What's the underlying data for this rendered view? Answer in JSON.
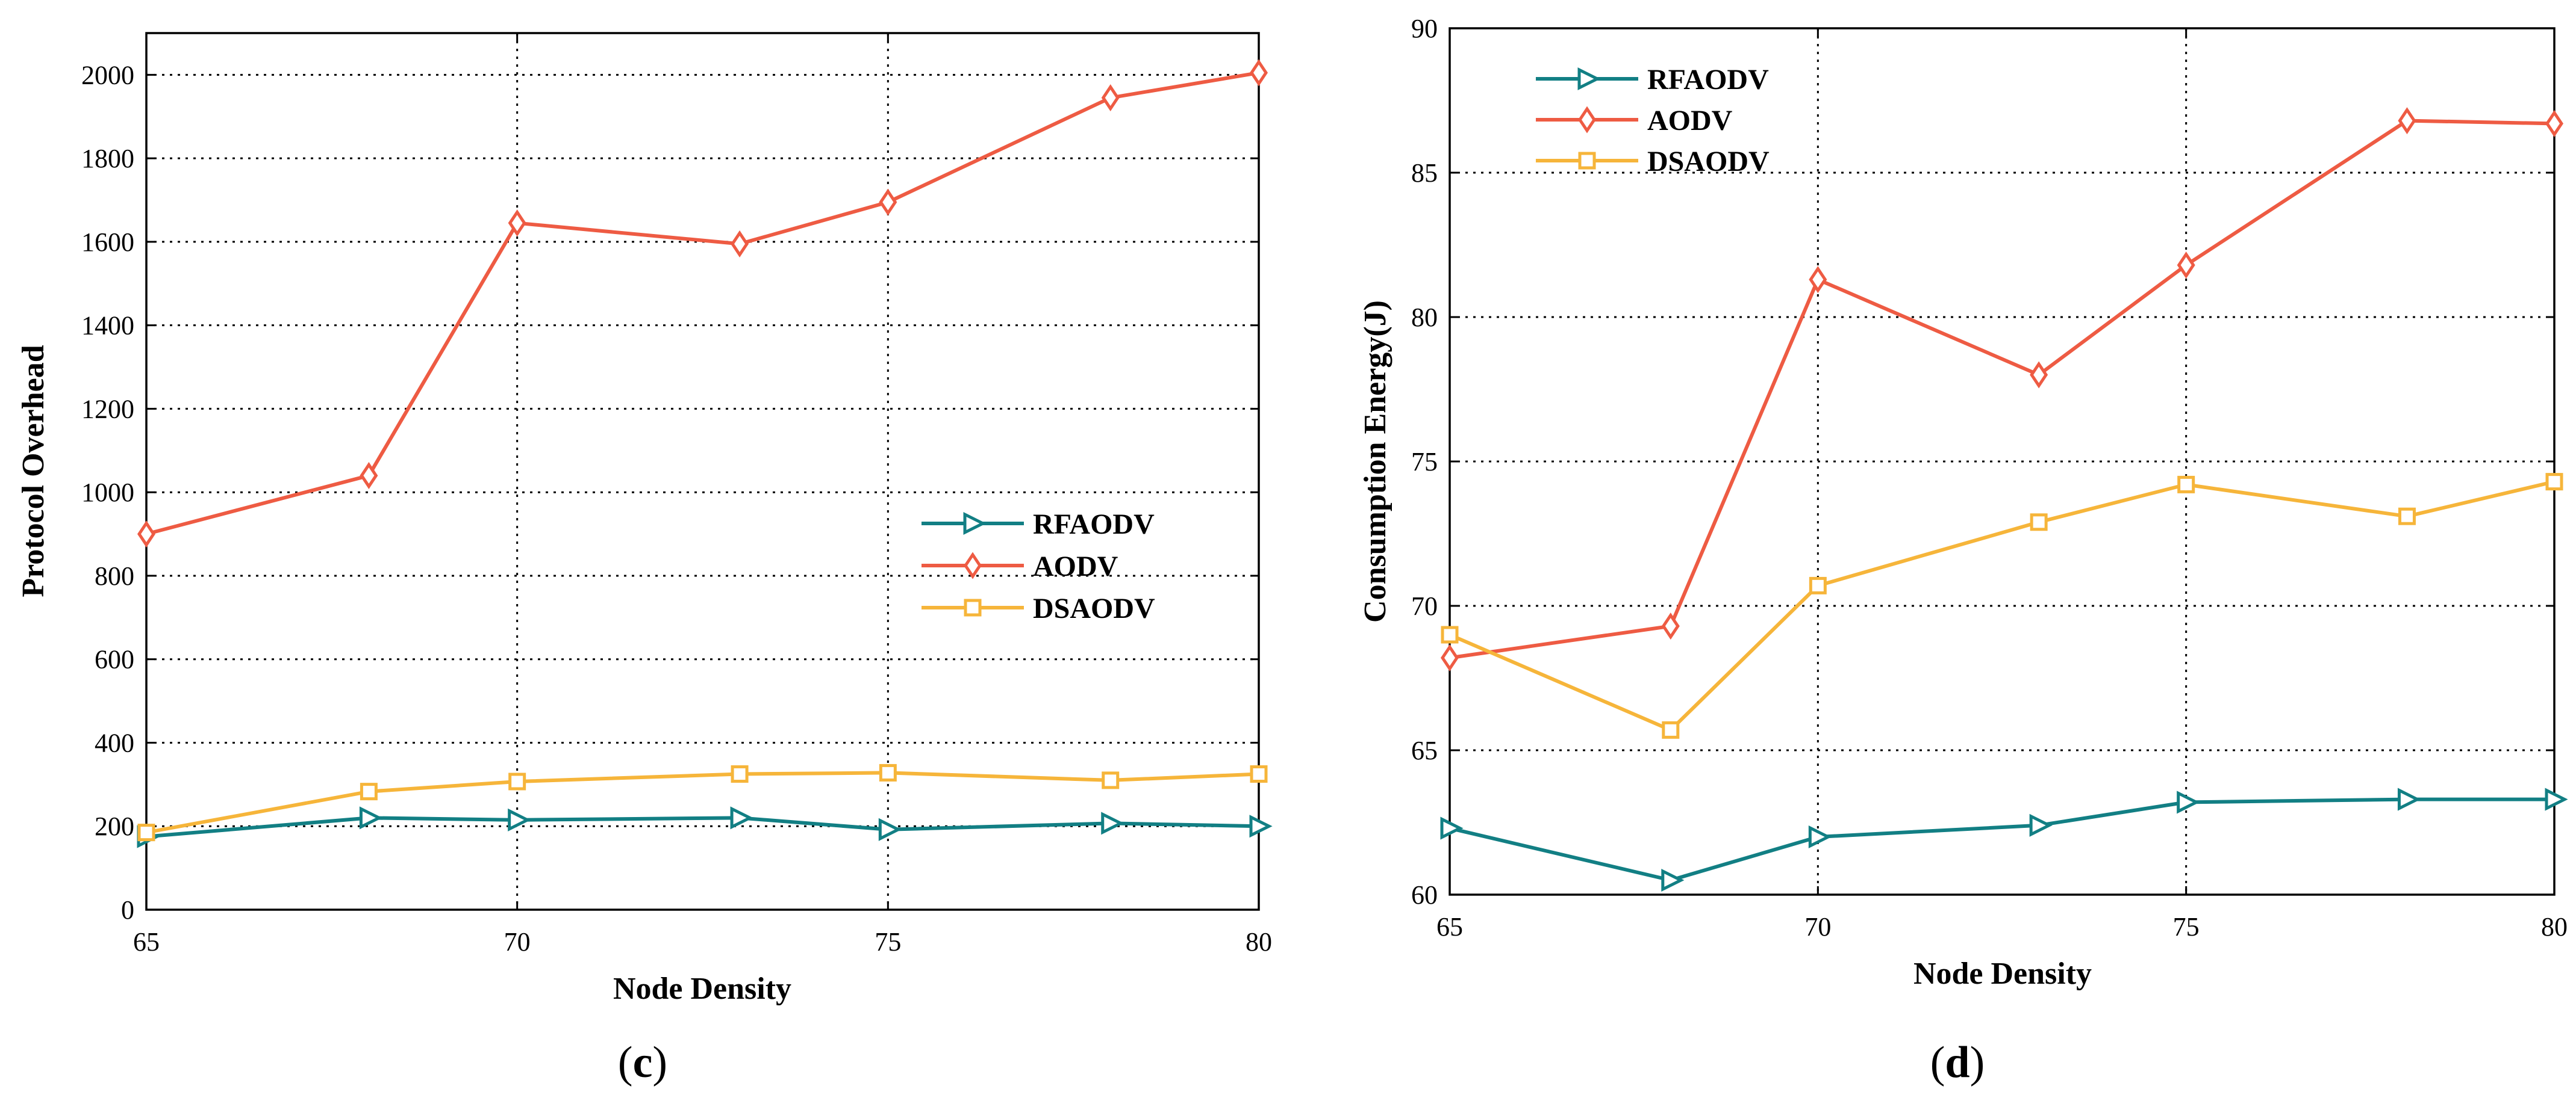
{
  "colors": {
    "RFAODV": "#127f84",
    "AODV": "#ee5b43",
    "DSAODV": "#f6b53a"
  },
  "chart_data": [
    {
      "type": "line",
      "caption_letter": "c",
      "xlabel": "Node Density",
      "ylabel": "Protocol Overhead",
      "xlim": [
        65,
        80
      ],
      "ylim": [
        0,
        2100
      ],
      "xticks": [
        65,
        70,
        75,
        80
      ],
      "yticks": [
        0,
        200,
        400,
        600,
        800,
        1000,
        1200,
        1400,
        1600,
        1800,
        2000
      ],
      "legend_position": "center-right",
      "grid": true,
      "x": [
        65,
        68,
        70,
        73,
        75,
        78,
        80
      ],
      "series": [
        {
          "name": "RFAODV",
          "marker": "triangle-right",
          "values": [
            175,
            220,
            215,
            220,
            192,
            207,
            200
          ]
        },
        {
          "name": "AODV",
          "marker": "diamond",
          "values": [
            900,
            1040,
            1645,
            1595,
            1695,
            1945,
            2005
          ]
        },
        {
          "name": "DSAODV",
          "marker": "square",
          "values": [
            185,
            283,
            307,
            325,
            328,
            310,
            325
          ]
        }
      ]
    },
    {
      "type": "line",
      "caption_letter": "d",
      "xlabel": "Node Density",
      "ylabel": "Consumption Energy(J)",
      "xlim": [
        65,
        80
      ],
      "ylim": [
        60,
        90
      ],
      "xticks": [
        65,
        70,
        75,
        80
      ],
      "yticks": [
        60,
        65,
        70,
        75,
        80,
        85,
        90
      ],
      "legend_position": "top-left",
      "grid": true,
      "x": [
        65,
        68,
        70,
        73,
        75,
        78,
        80
      ],
      "series": [
        {
          "name": "RFAODV",
          "marker": "triangle-right",
          "values": [
            62.3,
            60.5,
            62.0,
            62.4,
            63.2,
            63.3,
            63.3
          ]
        },
        {
          "name": "AODV",
          "marker": "diamond",
          "values": [
            68.2,
            69.3,
            81.3,
            78.0,
            81.8,
            86.8,
            86.7
          ]
        },
        {
          "name": "DSAODV",
          "marker": "square",
          "values": [
            69.0,
            65.7,
            70.7,
            72.9,
            74.2,
            73.1,
            74.3
          ]
        }
      ]
    }
  ]
}
